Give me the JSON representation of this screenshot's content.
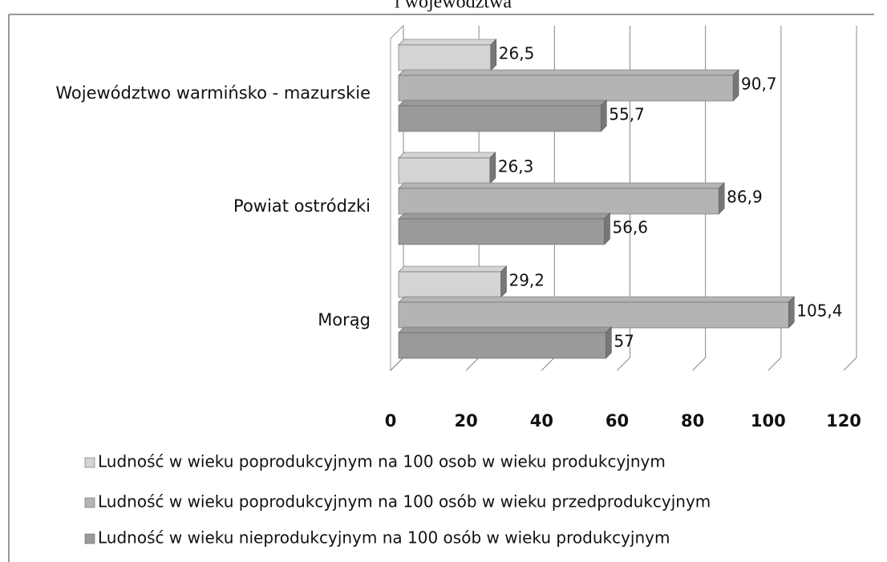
{
  "chart_data": {
    "type": "bar",
    "orientation": "horizontal",
    "title": "i województwa",
    "categories": [
      "Województwo warmińsko - mazurskie",
      "Powiat ostródzki",
      "Morąg"
    ],
    "series": [
      {
        "name": "Ludność w wieku poprodukcyjnym na 100 osob w wieku produkcyjnym",
        "color": "#d4d4d4",
        "values": [
          26.5,
          26.3,
          29.2
        ],
        "value_labels": [
          "26,5",
          "26,3",
          "29,2"
        ]
      },
      {
        "name": "Ludność w wieku poprodukcyjnym na 100 osób w  wieku przedprodukcyjnym",
        "color": "#b4b4b4",
        "values": [
          90.7,
          86.9,
          105.4
        ],
        "value_labels": [
          "90,7",
          "86,9",
          "105,4"
        ]
      },
      {
        "name": "Ludność w wieku nieprodukcyjnym na 100 osób w wieku produkcyjnym",
        "color": "#9a9a9a",
        "values": [
          55.7,
          56.6,
          57
        ],
        "value_labels": [
          "55,7",
          "56,6",
          "57"
        ]
      }
    ],
    "xlim": [
      0,
      120
    ],
    "xticks": [
      0,
      20,
      40,
      60,
      80,
      100,
      120
    ],
    "grid": true
  }
}
